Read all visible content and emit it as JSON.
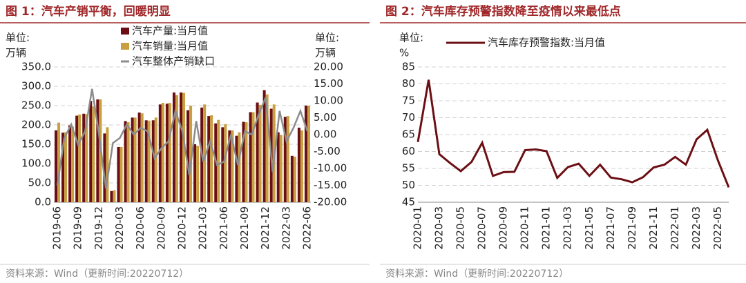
{
  "chart_data": [
    {
      "type": "bar",
      "title": "图 1：汽车产销平衡，回暖明显",
      "ylabel": [
        "单位:",
        "万辆"
      ],
      "y2label": [
        "单位:",
        "万辆"
      ],
      "source": "资料来源：Wind（更新时间:20220712）",
      "categories": [
        "2019-06",
        null,
        null,
        "2019-09",
        null,
        null,
        "2019-12",
        null,
        null,
        "2020-03",
        null,
        null,
        "2020-06",
        null,
        null,
        "2020-09",
        null,
        null,
        "2020-12",
        null,
        null,
        "2021-03",
        null,
        null,
        "2021-06",
        null,
        null,
        "2021-09",
        null,
        null,
        "2021-12",
        null,
        null,
        "2022-03",
        null,
        null,
        "2022-06"
      ],
      "series": [
        {
          "name": "汽车产量:当月值",
          "color": "#6b0f14",
          "values": [
            186,
            180,
            199,
            224,
            229,
            262,
            266,
            178,
            29,
            143,
            210,
            219,
            232,
            212,
            212,
            253,
            255,
            284,
            284,
            238,
            150,
            245,
            223,
            204,
            194,
            186,
            172,
            208,
            233,
            258,
            290,
            242,
            181,
            221,
            120,
            193,
            250
          ]
        },
        {
          "name": "汽车销量:当月值",
          "color": "#c9a040",
          "values": [
            206,
            181,
            196,
            227,
            228,
            248,
            266,
            194,
            31,
            143,
            207,
            219,
            230,
            211,
            219,
            257,
            257,
            277,
            283,
            250,
            146,
            253,
            225,
            213,
            202,
            186,
            181,
            207,
            233,
            252,
            279,
            253,
            174,
            223,
            118,
            186,
            250
          ]
        },
        {
          "name": "汽车整体产销缺口",
          "color": "#8c8c8c",
          "type": "line",
          "axis": "y2",
          "values": [
            -15,
            -1,
            3,
            -3,
            1,
            13.5,
            0,
            -16,
            -2.5,
            -1,
            3,
            0,
            2,
            1,
            -7,
            -4,
            -2,
            7,
            1,
            -12,
            4,
            -8,
            -2,
            -9,
            -8,
            0,
            -9,
            1,
            0,
            6,
            11,
            -11,
            7,
            -2,
            2,
            7,
            1
          ]
        }
      ],
      "ylim": [
        0,
        350
      ],
      "yticks": [
        {
          "value": 0,
          "label": "0.0"
        },
        {
          "value": 50,
          "label": "50.0"
        },
        {
          "value": 100,
          "label": "100.0"
        },
        {
          "value": 150,
          "label": "150.0"
        },
        {
          "value": 200,
          "label": "200.0"
        },
        {
          "value": 250,
          "label": "250.0"
        },
        {
          "value": 300,
          "label": "300.0"
        },
        {
          "value": 350,
          "label": "350.0"
        }
      ],
      "y2lim": [
        -20,
        20
      ],
      "y2ticks": [
        {
          "value": -20,
          "label": "-20.00"
        },
        {
          "value": -15,
          "label": "-15.00"
        },
        {
          "value": -10,
          "label": "-10.00"
        },
        {
          "value": -5,
          "label": "-5.00"
        },
        {
          "value": 0,
          "label": "0.00"
        },
        {
          "value": 5,
          "label": "5.00"
        },
        {
          "value": 10,
          "label": "10.00"
        },
        {
          "value": 15,
          "label": "15.00"
        },
        {
          "value": 20,
          "label": "20.00"
        }
      ],
      "grid": true
    },
    {
      "type": "line",
      "title": "图 2：汽车库存预警指数降至疫情以来最低点",
      "ylabel": [
        "单位:",
        "%"
      ],
      "source": "资料来源：Wind（更新时间:20220712）",
      "categories": [
        "2020-01",
        null,
        "2020-03",
        null,
        "2020-05",
        null,
        "2020-07",
        null,
        "2020-09",
        null,
        "2020-11",
        null,
        "2021-01",
        null,
        "2021-03",
        null,
        "2021-05",
        null,
        "2021-07",
        null,
        "2021-09",
        null,
        "2021-11",
        null,
        "2022-01",
        null,
        "2022-03",
        null,
        "2022-05",
        null
      ],
      "series": [
        {
          "name": "汽车库存预警指数:当月值",
          "color": "#6b0f14",
          "values": [
            62.8,
            81.2,
            59.2,
            56.6,
            54.2,
            56.9,
            62.6,
            52.8,
            53.9,
            54.0,
            60.4,
            60.6,
            60.1,
            52.2,
            55.4,
            56.4,
            52.8,
            56.1,
            52.3,
            51.8,
            50.9,
            52.4,
            55.3,
            56.1,
            58.4,
            56.1,
            63.6,
            66.4,
            57.3,
            49.4
          ]
        }
      ],
      "ylim": [
        45,
        85
      ],
      "yticks": [
        45,
        50,
        55,
        60,
        65,
        70,
        75,
        80,
        85
      ],
      "grid": true
    }
  ]
}
